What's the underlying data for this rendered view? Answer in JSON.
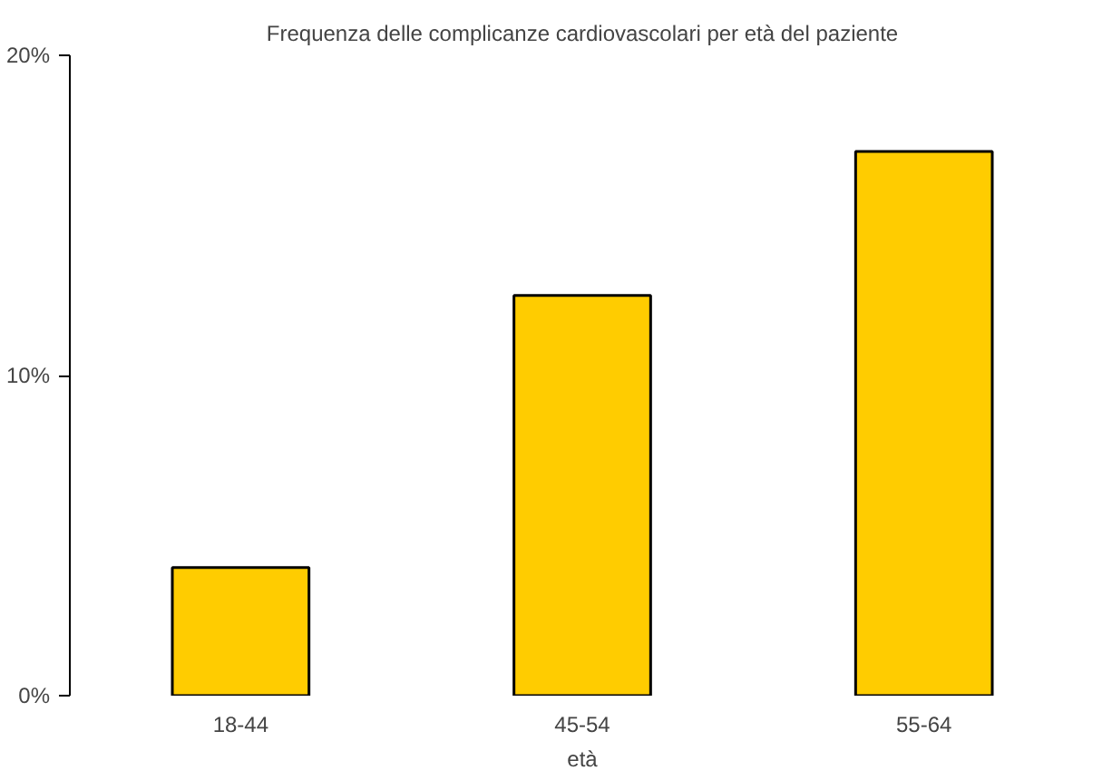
{
  "chart_data": {
    "type": "bar",
    "title": "Frequenza delle complicanze cardiovascolari per età del paziente",
    "xlabel": "età",
    "categories": [
      "18-44",
      "45-54",
      "55-64"
    ],
    "values": [
      4,
      12.5,
      17
    ],
    "color": "#ffcc00",
    "ylim": [
      0,
      20
    ],
    "yticks": [
      {
        "value": 0,
        "label": "0%"
      },
      {
        "value": 10,
        "label": "10%"
      },
      {
        "value": 20,
        "label": "20%"
      }
    ],
    "grid": false
  }
}
